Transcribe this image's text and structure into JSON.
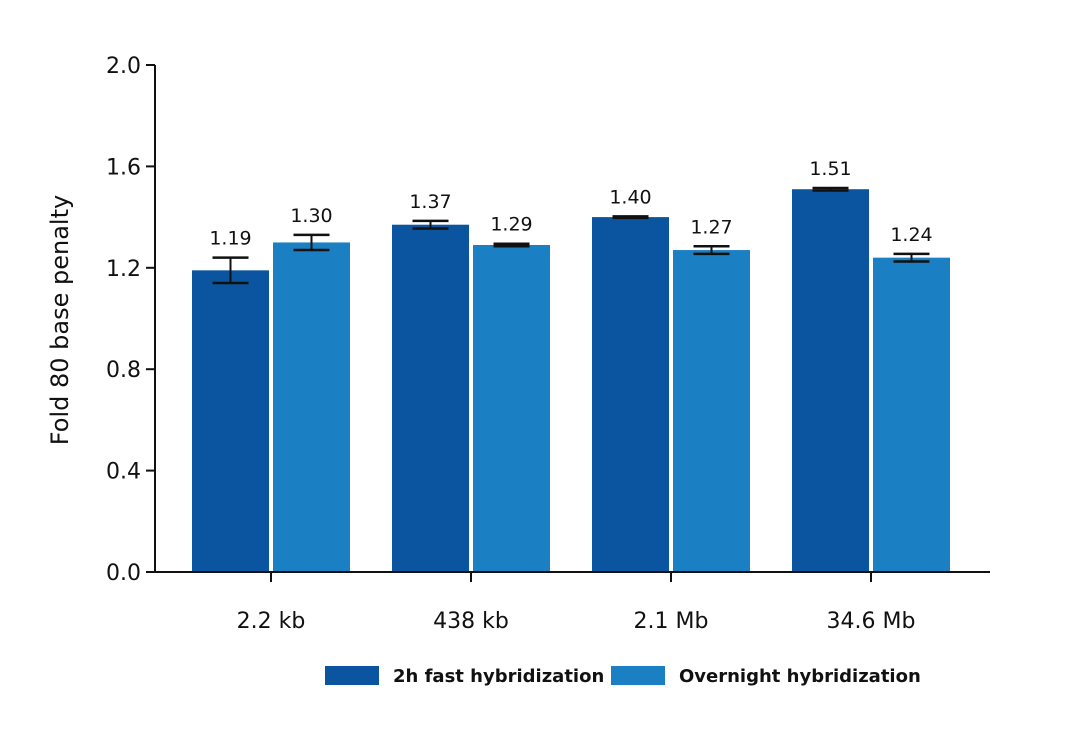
{
  "chart_data": {
    "type": "bar",
    "title": "",
    "xlabel": "",
    "ylabel": "Fold 80 base penalty",
    "ylim": [
      0,
      2.0
    ],
    "yticks": [
      "0.0",
      "0.4",
      "0.8",
      "1.2",
      "1.6",
      "2.0"
    ],
    "categories": [
      "2.2 kb",
      "438 kb",
      "2.1 Mb",
      "34.6 Mb"
    ],
    "grid": false,
    "legend_position": "bottom",
    "series": [
      {
        "name": "2h fast hybridization",
        "color": "#0b55a0",
        "values": [
          1.19,
          1.37,
          1.4,
          1.51
        ],
        "labels": [
          "1.19",
          "1.37",
          "1.40",
          "1.51"
        ],
        "errors": [
          0.05,
          0.015,
          0.003,
          0.005
        ]
      },
      {
        "name": "Overnight hybridization",
        "color": "#1b80c3",
        "values": [
          1.3,
          1.29,
          1.27,
          1.24
        ],
        "labels": [
          "1.30",
          "1.29",
          "1.27",
          "1.24"
        ],
        "errors": [
          0.03,
          0.005,
          0.015,
          0.015
        ]
      }
    ]
  }
}
